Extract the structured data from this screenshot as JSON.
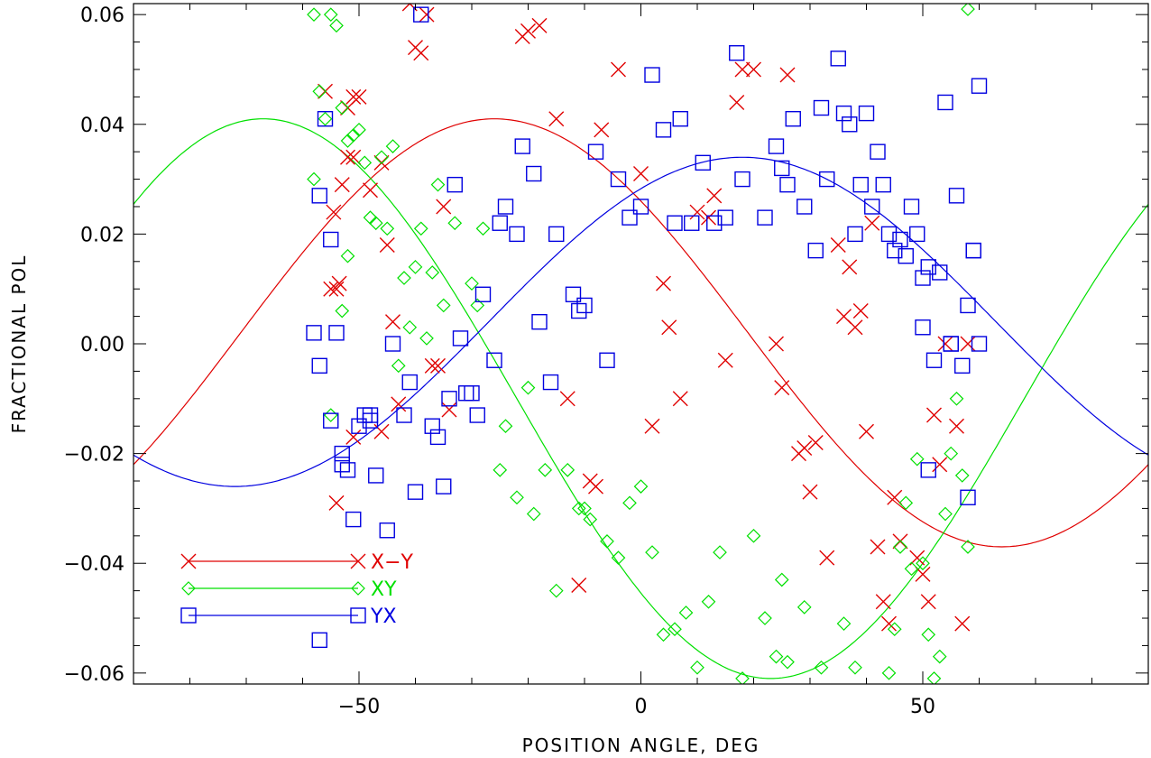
{
  "chart_data": {
    "type": "scatter",
    "xlabel": "POSITION ANGLE, DEG",
    "ylabel": "FRACTIONAL POL",
    "xlim": [
      -90,
      90
    ],
    "ylim": [
      -0.062,
      0.062
    ],
    "x_ticks": [
      -50,
      0,
      50
    ],
    "x_tick_labels": [
      "−50",
      "0",
      "50"
    ],
    "y_ticks": [
      0.06,
      0.04,
      0.02,
      0.0,
      -0.02,
      -0.04,
      -0.06
    ],
    "y_tick_labels": [
      "0.06",
      "0.04",
      "0.02",
      "0.00",
      "−0.02",
      "−0.04",
      "−0.06"
    ],
    "grid": false,
    "legend_position": "bottom-left",
    "series": [
      {
        "name": "X−Y",
        "color": "#e00000",
        "marker": "x",
        "curve": {
          "amplitude": 0.039,
          "offset": 0.002,
          "peak_angle": -26
        },
        "points": [
          [
            -56,
            0.046
          ],
          [
            -54.5,
            0.024
          ],
          [
            -53,
            0.029
          ],
          [
            -55,
            0.01
          ],
          [
            -53.5,
            0.011
          ],
          [
            -54,
            0.01
          ],
          [
            -51,
            0.045
          ],
          [
            -50,
            0.045
          ],
          [
            -52,
            0.043
          ],
          [
            -51,
            0.034
          ],
          [
            -52,
            0.034
          ],
          [
            -48,
            0.028
          ],
          [
            -46,
            0.033
          ],
          [
            -45,
            0.018
          ],
          [
            -44,
            0.004
          ],
          [
            -43,
            -0.011
          ],
          [
            -46,
            -0.016
          ],
          [
            -51,
            -0.017
          ],
          [
            -54,
            -0.029
          ],
          [
            -40,
            0.054
          ],
          [
            -39,
            0.053
          ],
          [
            -38,
            0.06
          ],
          [
            -41,
            0.062
          ],
          [
            -36,
            -0.004
          ],
          [
            -37,
            -0.004
          ],
          [
            -35,
            0.025
          ],
          [
            -34,
            -0.012
          ],
          [
            -21,
            0.056
          ],
          [
            -20,
            0.057
          ],
          [
            -18,
            0.058
          ],
          [
            -15,
            0.041
          ],
          [
            -13,
            -0.01
          ],
          [
            -11,
            -0.044
          ],
          [
            -9,
            -0.025
          ],
          [
            -8,
            -0.026
          ],
          [
            -7,
            0.039
          ],
          [
            -4,
            0.05
          ],
          [
            0,
            0.031
          ],
          [
            2,
            -0.015
          ],
          [
            4,
            0.011
          ],
          [
            5,
            0.003
          ],
          [
            7,
            -0.01
          ],
          [
            10,
            0.024
          ],
          [
            12,
            0.023
          ],
          [
            13,
            0.027
          ],
          [
            15,
            -0.003
          ],
          [
            17,
            0.044
          ],
          [
            18,
            0.05
          ],
          [
            20,
            0.05
          ],
          [
            24,
            0.0
          ],
          [
            25,
            -0.008
          ],
          [
            26,
            0.049
          ],
          [
            28,
            -0.02
          ],
          [
            29,
            -0.019
          ],
          [
            31,
            -0.018
          ],
          [
            30,
            -0.027
          ],
          [
            33,
            -0.039
          ],
          [
            35,
            0.018
          ],
          [
            36,
            0.005
          ],
          [
            37,
            0.014
          ],
          [
            38,
            0.003
          ],
          [
            39,
            0.006
          ],
          [
            40,
            -0.016
          ],
          [
            41,
            0.022
          ],
          [
            42,
            -0.037
          ],
          [
            43,
            -0.047
          ],
          [
            44,
            -0.051
          ],
          [
            45,
            -0.028
          ],
          [
            46,
            -0.036
          ],
          [
            49,
            -0.039
          ],
          [
            50,
            -0.042
          ],
          [
            51,
            -0.047
          ],
          [
            52,
            -0.013
          ],
          [
            53,
            -0.022
          ],
          [
            54,
            0.0
          ],
          [
            56,
            -0.015
          ],
          [
            57,
            -0.051
          ],
          [
            58,
            0.0
          ]
        ]
      },
      {
        "name": "XY",
        "color": "#00e000",
        "marker": "diamond",
        "curve": {
          "amplitude": 0.051,
          "offset": -0.01,
          "peak_angle": -67
        },
        "points": [
          [
            -58,
            0.06
          ],
          [
            -57,
            0.046
          ],
          [
            -56,
            0.041
          ],
          [
            -55,
            0.06
          ],
          [
            -54,
            0.058
          ],
          [
            -53,
            0.043
          ],
          [
            -52,
            0.037
          ],
          [
            -51,
            0.038
          ],
          [
            -50,
            0.039
          ],
          [
            -49,
            0.033
          ],
          [
            -48,
            0.023
          ],
          [
            -47,
            0.022
          ],
          [
            -46,
            0.034
          ],
          [
            -44,
            0.036
          ],
          [
            -45,
            0.021
          ],
          [
            -53,
            0.006
          ],
          [
            -52,
            0.016
          ],
          [
            -55,
            -0.013
          ],
          [
            -58,
            0.03
          ],
          [
            -43,
            -0.004
          ],
          [
            -42,
            0.012
          ],
          [
            -41,
            0.003
          ],
          [
            -40,
            0.014
          ],
          [
            -39,
            0.021
          ],
          [
            -38,
            0.001
          ],
          [
            -37,
            0.013
          ],
          [
            -36,
            0.029
          ],
          [
            -35,
            0.007
          ],
          [
            -33,
            0.022
          ],
          [
            -30,
            0.011
          ],
          [
            -29,
            0.007
          ],
          [
            -28,
            0.021
          ],
          [
            -25,
            -0.023
          ],
          [
            -24,
            -0.015
          ],
          [
            -22,
            -0.028
          ],
          [
            -20,
            -0.008
          ],
          [
            -19,
            -0.031
          ],
          [
            -17,
            -0.023
          ],
          [
            -15,
            -0.045
          ],
          [
            -13,
            -0.023
          ],
          [
            -11,
            -0.03
          ],
          [
            -10,
            -0.03
          ],
          [
            -9,
            -0.032
          ],
          [
            -6,
            -0.036
          ],
          [
            -4,
            -0.039
          ],
          [
            -2,
            -0.029
          ],
          [
            0,
            -0.026
          ],
          [
            2,
            -0.038
          ],
          [
            4,
            -0.053
          ],
          [
            6,
            -0.052
          ],
          [
            8,
            -0.049
          ],
          [
            10,
            -0.059
          ],
          [
            12,
            -0.047
          ],
          [
            14,
            -0.038
          ],
          [
            18,
            -0.061
          ],
          [
            20,
            -0.035
          ],
          [
            22,
            -0.05
          ],
          [
            24,
            -0.057
          ],
          [
            25,
            -0.043
          ],
          [
            26,
            -0.058
          ],
          [
            29,
            -0.048
          ],
          [
            32,
            -0.059
          ],
          [
            36,
            -0.051
          ],
          [
            38,
            -0.059
          ],
          [
            44,
            -0.06
          ],
          [
            45,
            -0.052
          ],
          [
            46,
            -0.037
          ],
          [
            47,
            -0.029
          ],
          [
            48,
            -0.041
          ],
          [
            49,
            -0.021
          ],
          [
            50,
            -0.04
          ],
          [
            51,
            -0.053
          ],
          [
            52,
            -0.061
          ],
          [
            53,
            -0.057
          ],
          [
            54,
            -0.031
          ],
          [
            55,
            -0.02
          ],
          [
            56,
            -0.01
          ],
          [
            57,
            -0.024
          ],
          [
            58,
            -0.037
          ],
          [
            58,
            0.061
          ]
        ]
      },
      {
        "name": "YX",
        "color": "#0000e0",
        "marker": "square",
        "curve": {
          "amplitude": 0.03,
          "offset": 0.004,
          "peak_angle": 18
        },
        "points": [
          [
            -58,
            0.002
          ],
          [
            -57,
            0.027
          ],
          [
            -56,
            0.041
          ],
          [
            -55,
            0.019
          ],
          [
            -54,
            0.002
          ],
          [
            -53,
            -0.02
          ],
          [
            -52,
            -0.023
          ],
          [
            -51,
            -0.032
          ],
          [
            -50,
            -0.015
          ],
          [
            -49,
            -0.013
          ],
          [
            -48,
            -0.014
          ],
          [
            -47,
            -0.024
          ],
          [
            -45,
            -0.034
          ],
          [
            -44,
            0.0
          ],
          [
            -42,
            -0.013
          ],
          [
            -41,
            -0.007
          ],
          [
            -40,
            -0.027
          ],
          [
            -39,
            0.06
          ],
          [
            -37,
            -0.015
          ],
          [
            -36,
            -0.017
          ],
          [
            -35,
            -0.026
          ],
          [
            -34,
            -0.01
          ],
          [
            -33,
            0.029
          ],
          [
            -32,
            0.001
          ],
          [
            -31,
            -0.009
          ],
          [
            -30,
            -0.009
          ],
          [
            -29,
            -0.013
          ],
          [
            -28,
            0.009
          ],
          [
            -26,
            -0.003
          ],
          [
            -25,
            0.022
          ],
          [
            -24,
            0.025
          ],
          [
            -22,
            0.02
          ],
          [
            -21,
            0.036
          ],
          [
            -19,
            0.031
          ],
          [
            -18,
            0.004
          ],
          [
            -16,
            -0.007
          ],
          [
            -15,
            0.02
          ],
          [
            -12,
            0.009
          ],
          [
            -11,
            0.006
          ],
          [
            -10,
            0.007
          ],
          [
            -8,
            0.035
          ],
          [
            -6,
            -0.003
          ],
          [
            -4,
            0.03
          ],
          [
            -2,
            0.023
          ],
          [
            0,
            0.025
          ],
          [
            2,
            0.049
          ],
          [
            4,
            0.039
          ],
          [
            6,
            0.022
          ],
          [
            7,
            0.041
          ],
          [
            9,
            0.022
          ],
          [
            11,
            0.033
          ],
          [
            13,
            0.022
          ],
          [
            15,
            0.023
          ],
          [
            17,
            0.053
          ],
          [
            18,
            0.03
          ],
          [
            22,
            0.023
          ],
          [
            24,
            0.036
          ],
          [
            25,
            0.032
          ],
          [
            26,
            0.029
          ],
          [
            27,
            0.041
          ],
          [
            29,
            0.025
          ],
          [
            31,
            0.017
          ],
          [
            32,
            0.043
          ],
          [
            33,
            0.03
          ],
          [
            35,
            0.052
          ],
          [
            36,
            0.042
          ],
          [
            37,
            0.04
          ],
          [
            38,
            0.02
          ],
          [
            39,
            0.029
          ],
          [
            40,
            0.042
          ],
          [
            41,
            0.025
          ],
          [
            42,
            0.035
          ],
          [
            43,
            0.029
          ],
          [
            44,
            0.02
          ],
          [
            45,
            0.017
          ],
          [
            46,
            0.019
          ],
          [
            47,
            0.016
          ],
          [
            48,
            0.025
          ],
          [
            49,
            0.02
          ],
          [
            50,
            0.012
          ],
          [
            51,
            0.014
          ],
          [
            52,
            -0.003
          ],
          [
            53,
            0.013
          ],
          [
            54,
            0.044
          ],
          [
            55,
            0.0
          ],
          [
            56,
            0.027
          ],
          [
            57,
            -0.004
          ],
          [
            58,
            0.007
          ],
          [
            59,
            0.017
          ],
          [
            60,
            0.047
          ],
          [
            -57,
            -0.054
          ],
          [
            -57,
            -0.004
          ],
          [
            -55,
            -0.014
          ],
          [
            -53,
            -0.022
          ],
          [
            -48,
            -0.013
          ],
          [
            50,
            0.003
          ],
          [
            51,
            -0.023
          ],
          [
            55,
            0.0
          ],
          [
            58,
            -0.028
          ],
          [
            59,
            0.017
          ],
          [
            60,
            0.0
          ]
        ]
      }
    ]
  }
}
